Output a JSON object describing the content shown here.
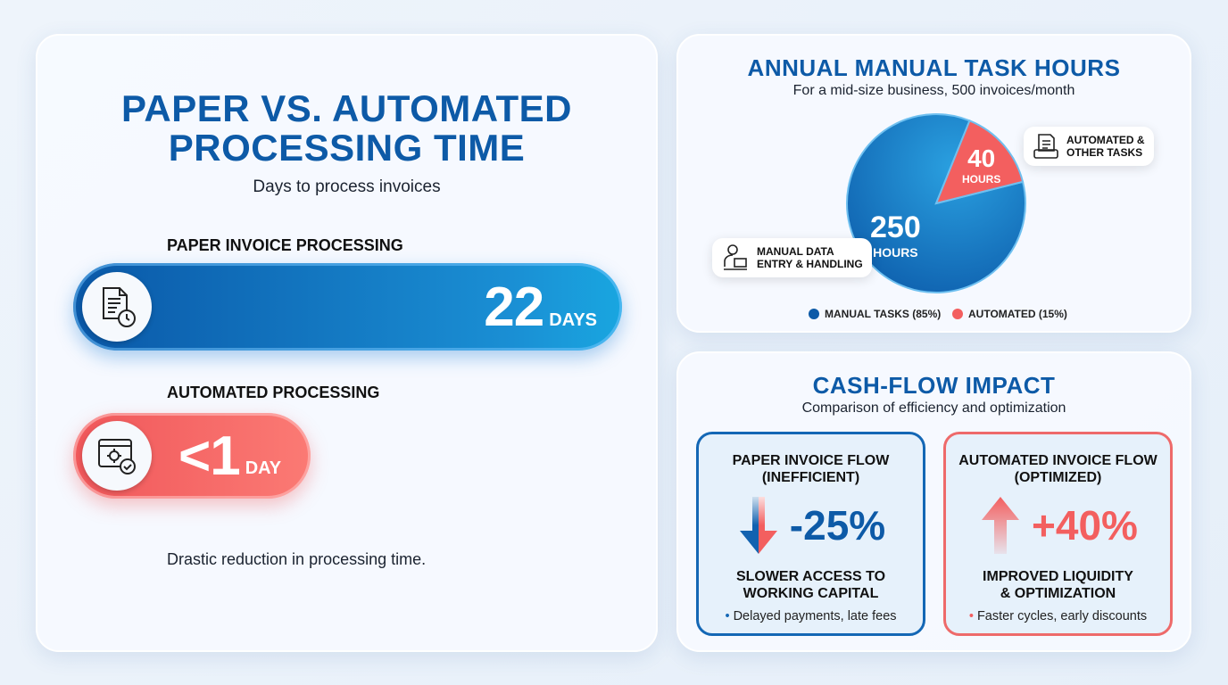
{
  "left": {
    "title_line1": "PAPER VS. AUTOMATED",
    "title_line2": "PROCESSING TIME",
    "subtitle": "Days to process invoices",
    "paper_label": "PAPER INVOICE PROCESSING",
    "paper_value": "22",
    "paper_unit": "DAYS",
    "auto_label": "AUTOMATED PROCESSING",
    "auto_value": "<1",
    "auto_unit": "DAY",
    "footnote": "Drastic reduction in processing time."
  },
  "pie": {
    "title": "ANNUAL MANUAL TASK HOURS",
    "subtitle": "For a mid-size business, 500 invoices/month",
    "manual_value": "250",
    "manual_unit": "HOURS",
    "auto_value": "40",
    "auto_unit": "HOURS",
    "callout_manual_1": "MANUAL DATA",
    "callout_manual_2": "ENTRY & HANDLING",
    "callout_auto_1": "AUTOMATED &",
    "callout_auto_2": "OTHER TASKS",
    "legend_manual": "MANUAL TASKS (85%)",
    "legend_auto": "AUTOMATED (15%)"
  },
  "cash": {
    "title": "CASH-FLOW IMPACT",
    "subtitle": "Comparison of efficiency and optimization",
    "paper": {
      "title1": "PAPER INVOICE FLOW",
      "title2": "(INEFFICIENT)",
      "pct": "-25%",
      "s1": "SLOWER ACCESS TO",
      "s2": "WORKING CAPITAL",
      "bullet": "Delayed payments, late fees"
    },
    "auto": {
      "title1": "AUTOMATED INVOICE FLOW",
      "title2": "(OPTIMIZED)",
      "pct": "+40%",
      "s1": "IMPROVED LIQUIDITY",
      "s2": "& OPTIMIZATION",
      "bullet": "Faster cycles, early discounts"
    }
  },
  "colors": {
    "blue": "#0d5aa7",
    "red": "#f35f5f"
  },
  "chart_data": [
    {
      "type": "bar",
      "title": "PAPER VS. AUTOMATED PROCESSING TIME",
      "subtitle": "Days to process invoices",
      "categories": [
        "PAPER INVOICE PROCESSING",
        "AUTOMATED PROCESSING"
      ],
      "values": [
        22,
        1
      ],
      "value_labels": [
        "22 DAYS",
        "<1 DAY"
      ],
      "unit": "days"
    },
    {
      "type": "pie",
      "title": "ANNUAL MANUAL TASK HOURS",
      "categories": [
        "Manual tasks",
        "Automated"
      ],
      "values": [
        250,
        40
      ],
      "percent": [
        85,
        15
      ],
      "legend": "bottom"
    },
    {
      "type": "bar",
      "title": "CASH-FLOW IMPACT",
      "categories": [
        "Paper invoice flow",
        "Automated invoice flow"
      ],
      "values": [
        -25,
        40
      ],
      "unit": "%"
    }
  ]
}
